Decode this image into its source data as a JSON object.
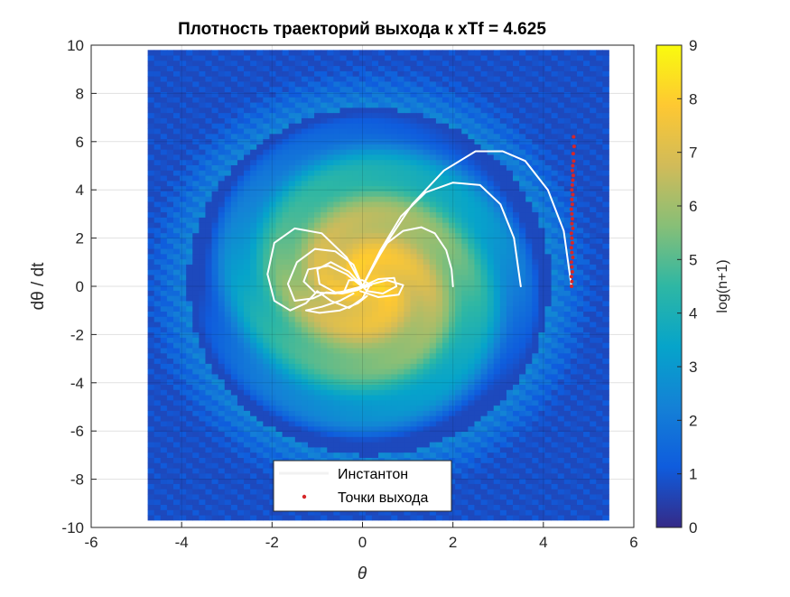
{
  "chart_data": {
    "type": "heatmap",
    "title": "Плотность траекторий выхода к xTf = 4.625",
    "xlabel": "θ",
    "ylabel": "dθ / dt",
    "xlim": [
      -6,
      6
    ],
    "ylim": [
      -10,
      10
    ],
    "x_ticks": [
      "-6",
      "-4",
      "-2",
      "0",
      "2",
      "4",
      "6"
    ],
    "y_ticks": [
      "-10",
      "-8",
      "-6",
      "-4",
      "-2",
      "0",
      "2",
      "4",
      "6",
      "8",
      "10"
    ],
    "grid": true,
    "heatmap": {
      "x_range": [
        -4.75,
        5.45
      ],
      "y_range": [
        -9.7,
        9.8
      ],
      "center": [
        0.15,
        0.2
      ],
      "peak_value": 8.0,
      "background_value": 0.7,
      "colormap": "parula"
    },
    "colorbar": {
      "label": "log(n+1)",
      "limits": [
        0,
        9
      ],
      "ticks": [
        "0",
        "1",
        "2",
        "3",
        "4",
        "5",
        "6",
        "7",
        "8",
        "9"
      ]
    },
    "legend": {
      "location": "bottom-center",
      "entries": [
        {
          "label": "Инстантон",
          "marker": "line",
          "color": "#f2f2f2"
        },
        {
          "label": "Точки выхода",
          "marker": "dot",
          "color": "#d62728"
        }
      ]
    },
    "series": [
      {
        "name": "Инстантон",
        "kind": "line",
        "color": "#ffffff",
        "curves": [
          [
            [
              0.0,
              0.0
            ],
            [
              0.25,
              0.9
            ],
            [
              0.55,
              1.8
            ],
            [
              0.9,
              2.3
            ],
            [
              1.3,
              2.45
            ],
            [
              1.6,
              2.2
            ],
            [
              1.85,
              1.5
            ],
            [
              1.97,
              0.7
            ],
            [
              2.0,
              0.0
            ]
          ],
          [
            [
              0.0,
              0.0
            ],
            [
              0.4,
              1.5
            ],
            [
              0.85,
              2.9
            ],
            [
              1.4,
              3.9
            ],
            [
              2.0,
              4.3
            ],
            [
              2.6,
              4.2
            ],
            [
              3.05,
              3.4
            ],
            [
              3.35,
              2.0
            ],
            [
              3.5,
              0.0
            ]
          ],
          [
            [
              0.0,
              0.0
            ],
            [
              0.5,
              1.7
            ],
            [
              1.1,
              3.4
            ],
            [
              1.8,
              4.8
            ],
            [
              2.5,
              5.6
            ],
            [
              3.1,
              5.6
            ],
            [
              3.6,
              5.2
            ],
            [
              4.1,
              4.0
            ],
            [
              4.45,
              2.3
            ],
            [
              4.62,
              0.0
            ]
          ],
          [
            [
              0.0,
              0.0
            ],
            [
              -0.35,
              1.2
            ],
            [
              -0.9,
              2.2
            ],
            [
              -1.5,
              2.4
            ],
            [
              -1.95,
              1.8
            ],
            [
              -2.1,
              0.5
            ],
            [
              -1.95,
              -0.6
            ],
            [
              -1.6,
              -1.0
            ],
            [
              -1.25,
              -0.7
            ],
            [
              -1.0,
              -0.2
            ],
            [
              -0.7,
              -0.6
            ],
            [
              -0.3,
              -0.9
            ],
            [
              0.0,
              -0.5
            ],
            [
              0.15,
              0.0
            ]
          ],
          [
            [
              0.0,
              0.0
            ],
            [
              -0.2,
              0.9
            ],
            [
              -0.6,
              1.45
            ],
            [
              -1.05,
              1.55
            ],
            [
              -1.45,
              1.0
            ],
            [
              -1.65,
              0.1
            ],
            [
              -1.5,
              -0.6
            ],
            [
              -1.1,
              -0.5
            ],
            [
              -0.8,
              -0.25
            ],
            [
              -0.45,
              -0.3
            ],
            [
              -0.1,
              -0.15
            ],
            [
              0.05,
              0.0
            ]
          ],
          [
            [
              0.0,
              0.0
            ],
            [
              -0.3,
              0.6
            ],
            [
              -0.7,
              1.0
            ],
            [
              -1.0,
              0.7
            ],
            [
              -0.95,
              0.1
            ],
            [
              -0.6,
              -0.25
            ],
            [
              -0.25,
              -0.2
            ],
            [
              0.0,
              0.0
            ]
          ],
          [
            [
              0.0,
              0.0
            ],
            [
              -0.6,
              -0.3
            ],
            [
              -1.05,
              -0.25
            ],
            [
              -1.3,
              0.2
            ],
            [
              -1.2,
              0.7
            ],
            [
              -0.75,
              0.85
            ],
            [
              -0.35,
              0.5
            ],
            [
              -0.05,
              0.05
            ]
          ],
          [
            [
              0.0,
              0.0
            ],
            [
              0.35,
              0.3
            ],
            [
              0.7,
              0.35
            ],
            [
              0.75,
              0.0
            ],
            [
              0.45,
              -0.3
            ],
            [
              0.1,
              -0.2
            ],
            [
              0.0,
              0.0
            ]
          ],
          [
            [
              0.0,
              0.0
            ],
            [
              -0.4,
              -0.2
            ],
            [
              -0.3,
              0.25
            ],
            [
              0.0,
              0.25
            ],
            [
              0.2,
              0.05
            ],
            [
              0.05,
              -0.05
            ]
          ],
          [
            [
              0.0,
              0.0
            ],
            [
              0.55,
              0.25
            ],
            [
              0.9,
              0.05
            ],
            [
              0.8,
              -0.35
            ],
            [
              0.35,
              -0.45
            ],
            [
              -0.05,
              -0.2
            ]
          ],
          [
            [
              -0.2,
              -0.3
            ],
            [
              -0.5,
              -0.6
            ],
            [
              -0.9,
              -0.85
            ],
            [
              -1.25,
              -1.0
            ],
            [
              -0.95,
              -1.1
            ],
            [
              -0.5,
              -1.0
            ],
            [
              -0.1,
              -0.7
            ],
            [
              0.1,
              -0.4
            ]
          ]
        ]
      },
      {
        "name": "Точки выхода",
        "kind": "scatter",
        "color": "#d62728",
        "x": [
          4.625,
          4.63,
          4.62,
          4.64,
          4.63,
          4.62,
          4.65,
          4.63,
          4.62,
          4.64,
          4.63,
          4.62,
          4.65,
          4.63,
          4.64,
          4.63,
          4.62,
          4.64,
          4.63,
          4.65,
          4.63,
          4.64,
          4.65,
          4.66,
          4.64,
          4.65,
          4.67,
          4.66,
          4.68,
          4.67
        ],
        "y": [
          0.0,
          0.2,
          0.4,
          0.6,
          0.8,
          1.0,
          1.2,
          1.4,
          1.6,
          1.8,
          2.0,
          2.2,
          2.4,
          2.6,
          2.8,
          3.0,
          3.2,
          3.4,
          3.6,
          3.8,
          4.0,
          4.2,
          4.4,
          4.6,
          4.8,
          5.0,
          5.2,
          5.5,
          5.8,
          6.2
        ]
      }
    ]
  }
}
